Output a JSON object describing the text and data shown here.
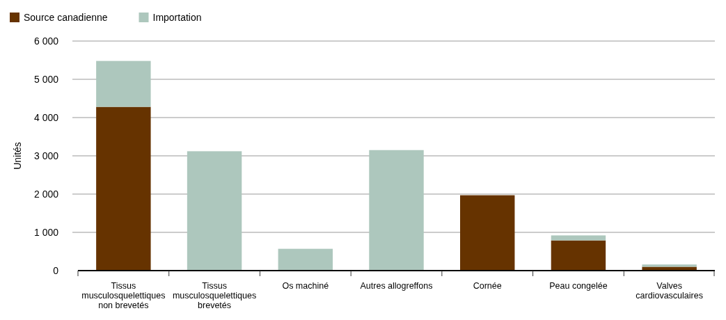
{
  "chart_data": {
    "type": "bar",
    "stacked": true,
    "ylabel": "Unités",
    "categories": [
      "Tissus musculosquelettiques non brevetés",
      "Tissus musculosquelettiques brevetés",
      "Os machiné",
      "Autres allogreffons",
      "Cornée",
      "Peau congelée",
      "Valves cardiovasculaires"
    ],
    "series": [
      {
        "name": "Source canadienne",
        "color": "#663300",
        "values": [
          4280,
          0,
          0,
          0,
          1970,
          790,
          100
        ]
      },
      {
        "name": "Importation",
        "color": "#adc7bd",
        "values": [
          1200,
          3120,
          570,
          3150,
          0,
          130,
          60
        ]
      }
    ],
    "ylim": [
      0,
      6000
    ],
    "yticks": [
      {
        "value": 0,
        "label": "0"
      },
      {
        "value": 1000,
        "label": "1 000"
      },
      {
        "value": 2000,
        "label": "2 000"
      },
      {
        "value": 3000,
        "label": "3 000"
      },
      {
        "value": 4000,
        "label": "4 000"
      },
      {
        "value": 5000,
        "label": "5 000"
      },
      {
        "value": 6000,
        "label": "6 000"
      }
    ],
    "grid": "y",
    "legend": "top left"
  }
}
